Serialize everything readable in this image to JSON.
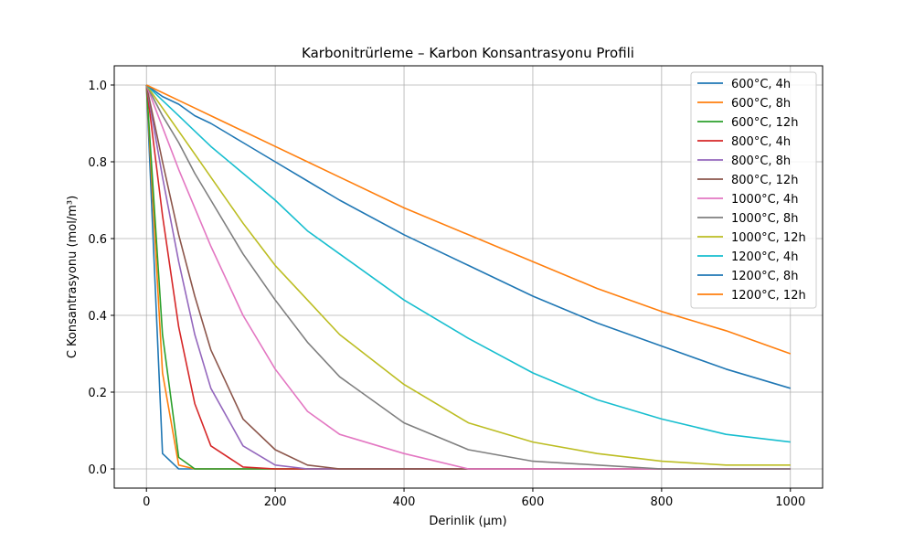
{
  "chart_data": {
    "type": "line",
    "title": "Karbonitrürleme – Karbon Konsantrasyonu Profili",
    "xlabel": "Derinlik (µm)",
    "ylabel": "C Konsantrasyonu (mol/m³)",
    "xlim": [
      -50,
      1050
    ],
    "ylim": [
      -0.05,
      1.05
    ],
    "xticks": [
      0,
      200,
      400,
      600,
      800,
      1000
    ],
    "yticks": [
      0.0,
      0.2,
      0.4,
      0.6,
      0.8,
      1.0
    ],
    "grid": true,
    "legend_position": "upper right",
    "x": [
      0,
      25,
      50,
      75,
      100,
      150,
      200,
      250,
      300,
      400,
      500,
      600,
      700,
      800,
      900,
      1000
    ],
    "series": [
      {
        "name": "600°C, 4h",
        "color": "#1f77b4",
        "values": [
          1.0,
          0.04,
          0.0,
          0.0,
          0.0,
          0.0,
          0.0,
          0.0,
          0.0,
          0.0,
          0.0,
          0.0,
          0.0,
          0.0,
          0.0,
          0.0
        ]
      },
      {
        "name": "600°C, 8h",
        "color": "#ff7f0e",
        "values": [
          1.0,
          0.25,
          0.01,
          0.0,
          0.0,
          0.0,
          0.0,
          0.0,
          0.0,
          0.0,
          0.0,
          0.0,
          0.0,
          0.0,
          0.0,
          0.0
        ]
      },
      {
        "name": "600°C, 12h",
        "color": "#2ca02c",
        "values": [
          1.0,
          0.35,
          0.03,
          0.0,
          0.0,
          0.0,
          0.0,
          0.0,
          0.0,
          0.0,
          0.0,
          0.0,
          0.0,
          0.0,
          0.0,
          0.0
        ]
      },
      {
        "name": "800°C, 4h",
        "color": "#d62728",
        "values": [
          1.0,
          0.66,
          0.37,
          0.17,
          0.06,
          0.005,
          0.0,
          0.0,
          0.0,
          0.0,
          0.0,
          0.0,
          0.0,
          0.0,
          0.0,
          0.0
        ]
      },
      {
        "name": "800°C, 8h",
        "color": "#9467bd",
        "values": [
          1.0,
          0.76,
          0.54,
          0.35,
          0.21,
          0.06,
          0.01,
          0.0,
          0.0,
          0.0,
          0.0,
          0.0,
          0.0,
          0.0,
          0.0,
          0.0
        ]
      },
      {
        "name": "800°C, 12h",
        "color": "#8c564b",
        "values": [
          1.0,
          0.8,
          0.61,
          0.45,
          0.31,
          0.13,
          0.05,
          0.01,
          0.0,
          0.0,
          0.0,
          0.0,
          0.0,
          0.0,
          0.0,
          0.0
        ]
      },
      {
        "name": "1000°C, 4h",
        "color": "#e377c2",
        "values": [
          1.0,
          0.89,
          0.78,
          0.68,
          0.58,
          0.4,
          0.26,
          0.15,
          0.09,
          0.04,
          0.0,
          0.0,
          0.0,
          0.0,
          0.0,
          0.0
        ]
      },
      {
        "name": "1000°C, 8h",
        "color": "#7f7f7f",
        "values": [
          1.0,
          0.92,
          0.85,
          0.77,
          0.7,
          0.56,
          0.44,
          0.33,
          0.24,
          0.12,
          0.05,
          0.02,
          0.01,
          0.0,
          0.0,
          0.0
        ]
      },
      {
        "name": "1000°C, 12h",
        "color": "#bcbd22",
        "values": [
          1.0,
          0.94,
          0.88,
          0.82,
          0.76,
          0.64,
          0.53,
          0.44,
          0.35,
          0.22,
          0.12,
          0.07,
          0.04,
          0.02,
          0.01,
          0.01
        ]
      },
      {
        "name": "1200°C, 4h",
        "color": "#17becf",
        "values": [
          1.0,
          0.96,
          0.92,
          0.88,
          0.84,
          0.77,
          0.7,
          0.62,
          0.56,
          0.44,
          0.34,
          0.25,
          0.18,
          0.13,
          0.09,
          0.07
        ]
      },
      {
        "name": "1200°C, 8h",
        "color": "#1f77b4",
        "values": [
          1.0,
          0.97,
          0.95,
          0.92,
          0.9,
          0.85,
          0.8,
          0.75,
          0.7,
          0.61,
          0.53,
          0.45,
          0.38,
          0.32,
          0.26,
          0.21
        ]
      },
      {
        "name": "1200°C, 12h",
        "color": "#ff7f0e",
        "values": [
          1.0,
          0.98,
          0.96,
          0.94,
          0.92,
          0.88,
          0.84,
          0.8,
          0.76,
          0.68,
          0.61,
          0.54,
          0.47,
          0.41,
          0.36,
          0.3
        ]
      }
    ]
  }
}
